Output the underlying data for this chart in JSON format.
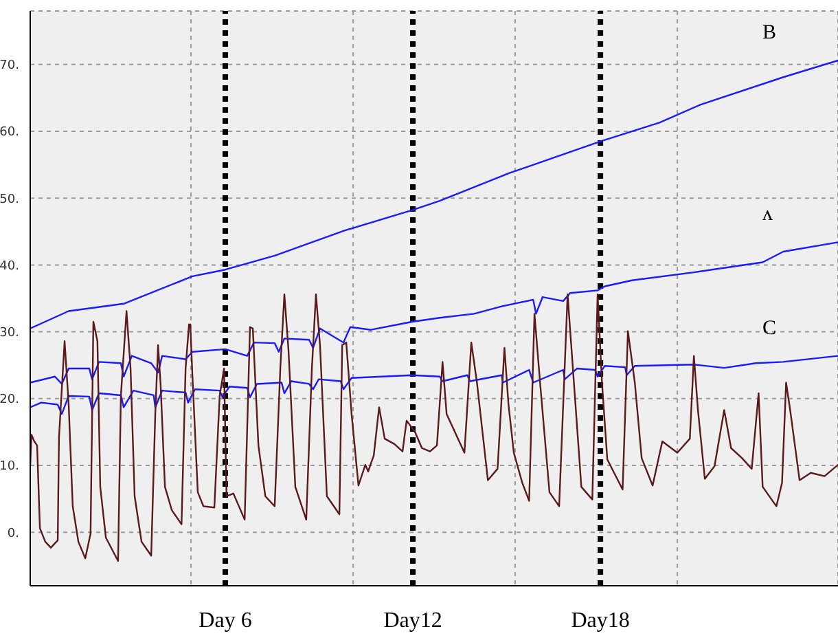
{
  "chart_data": {
    "type": "line",
    "xlim": [
      -0.24,
      25.6
    ],
    "ylim": [
      -8,
      78
    ],
    "xticks": [
      {
        "value": 4.9,
        "label": null
      },
      {
        "value": 10.09,
        "label": null
      },
      {
        "value": 15.27,
        "label": null
      },
      {
        "value": 20.46,
        "label": null
      }
    ],
    "tick_labels": "y",
    "yticks": [
      {
        "value": 0,
        "label": "0."
      },
      {
        "value": 10,
        "label": "10."
      },
      {
        "value": 20,
        "label": "20."
      },
      {
        "value": 30,
        "label": "30."
      },
      {
        "value": 40,
        "label": "40."
      },
      {
        "value": 50,
        "label": "50."
      },
      {
        "value": 60,
        "label": "60."
      },
      {
        "value": 70,
        "label": "70."
      }
    ],
    "grid": true,
    "marker": "none",
    "line_style": "solid",
    "ref_lines": [
      {
        "axis": "x",
        "value": 6,
        "label": "Day 6",
        "color": "#000000",
        "line_style": "dotted"
      },
      {
        "axis": "x",
        "value": 12,
        "label": "Day12",
        "color": "#000000",
        "line_style": "dotted"
      },
      {
        "axis": "x",
        "value": 18,
        "label": "Day18",
        "color": "#000000",
        "line_style": "dotted"
      }
    ],
    "series": [
      {
        "name": "B",
        "color": "#1a1aff",
        "x": [
          -0.24,
          0.99,
          2.75,
          4.95,
          6.0,
          7.58,
          9.78,
          11.98,
          12.86,
          15.06,
          18.0,
          19.89,
          21.21,
          23.85,
          25.6
        ],
        "values": [
          30.5,
          33.1,
          34.2,
          38.3,
          39.3,
          41.4,
          45.1,
          48.2,
          49.6,
          53.7,
          58.5,
          61.3,
          64.0,
          68.1,
          70.6
        ]
      },
      {
        "name": "ʌ",
        "color": "#1a1aff",
        "x": [
          -0.24,
          0.55,
          0.77,
          0.99,
          1.65,
          1.74,
          1.96,
          2.66,
          2.75,
          3.01,
          3.63,
          3.85,
          3.98,
          4.73,
          4.95,
          6.0,
          6.7,
          6.92,
          7.58,
          7.71,
          7.89,
          8.68,
          8.81,
          9.03,
          9.78,
          10.0,
          10.66,
          11.98,
          12.86,
          13.96,
          14.84,
          15.85,
          15.94,
          16.15,
          16.81,
          17.03,
          17.91,
          18.14,
          19.01,
          20.99,
          23.19,
          23.85,
          25.6
        ],
        "values": [
          22.4,
          23.3,
          22.2,
          24.5,
          24.5,
          22.9,
          25.5,
          25.3,
          23.3,
          26.4,
          25.3,
          23.9,
          26.4,
          25.9,
          27.0,
          27.4,
          26.4,
          28.4,
          28.3,
          27.0,
          29.0,
          28.8,
          27.6,
          30.5,
          28.4,
          30.7,
          30.3,
          31.5,
          32.1,
          32.7,
          33.8,
          34.8,
          32.7,
          35.2,
          34.6,
          35.8,
          36.2,
          36.8,
          37.7,
          38.9,
          40.4,
          42.0,
          43.4
        ]
      },
      {
        "name": "C",
        "color": "#1a1aff",
        "x": [
          -0.24,
          0.11,
          0.64,
          0.77,
          0.99,
          1.65,
          1.74,
          1.96,
          2.66,
          2.75,
          3.06,
          3.71,
          3.76,
          3.98,
          4.73,
          4.81,
          5.03,
          5.82,
          5.91,
          6.13,
          6.7,
          6.79,
          7.01,
          7.8,
          7.89,
          8.11,
          8.68,
          8.81,
          8.99,
          9.69,
          9.78,
          10.04,
          11.98,
          12.86,
          12.95,
          13.74,
          13.83,
          14.84,
          14.88,
          15.72,
          15.85,
          16.81,
          16.86,
          17.25,
          17.83,
          17.91,
          18.14,
          18.79,
          18.84,
          19.1,
          20.99,
          21.96,
          22.97,
          23.85,
          25.6
        ],
        "values": [
          18.7,
          19.4,
          19.1,
          17.7,
          20.4,
          20.3,
          18.3,
          20.8,
          20.5,
          18.7,
          21.2,
          20.5,
          18.7,
          21.2,
          20.9,
          19.4,
          21.4,
          21.2,
          20.2,
          21.8,
          21.6,
          20.2,
          22.2,
          22.4,
          20.8,
          22.6,
          22.2,
          21.4,
          22.9,
          22.6,
          21.4,
          23.1,
          23.5,
          23.3,
          22.6,
          23.5,
          22.6,
          23.5,
          22.4,
          24.3,
          22.4,
          24.3,
          22.9,
          24.5,
          24.3,
          23.3,
          24.9,
          24.7,
          23.5,
          24.9,
          25.1,
          24.6,
          25.3,
          25.5,
          26.4
        ]
      },
      {
        "color": "#5a1a1a",
        "x": [
          -0.24,
          -0.2,
          -0.11,
          -0.02,
          0.07,
          0.24,
          0.42,
          0.64,
          0.68,
          0.86,
          0.99,
          1.12,
          1.3,
          1.52,
          1.69,
          1.78,
          1.91,
          2.0,
          2.18,
          2.57,
          2.66,
          2.84,
          2.97,
          3.1,
          3.32,
          3.63,
          3.76,
          3.85,
          3.93,
          4.07,
          4.29,
          4.6,
          4.73,
          4.84,
          4.88,
          4.95,
          5.12,
          5.3,
          5.65,
          5.82,
          5.96,
          6.04,
          6.26,
          6.62,
          6.79,
          6.88,
          7.06,
          7.28,
          7.58,
          7.76,
          7.89,
          8.02,
          8.24,
          8.59,
          8.77,
          8.9,
          9.03,
          9.25,
          9.65,
          9.74,
          9.87,
          10.04,
          10.26,
          10.48,
          10.57,
          10.75,
          10.92,
          11.1,
          11.41,
          11.67,
          11.8,
          12.07,
          12.29,
          12.55,
          12.77,
          12.95,
          13.08,
          13.65,
          13.87,
          14.05,
          14.4,
          14.71,
          14.93,
          15.06,
          15.23,
          15.5,
          15.72,
          15.89,
          16.07,
          16.37,
          16.68,
          16.95,
          17.12,
          17.39,
          17.74,
          17.91,
          18.05,
          18.22,
          18.71,
          18.88,
          19.1,
          19.32,
          19.67,
          19.98,
          20.46,
          20.86,
          20.99,
          21.12,
          21.34,
          21.65,
          21.96,
          22.18,
          22.53,
          22.84,
          23.06,
          23.19,
          23.63,
          23.81,
          23.94,
          24.07,
          24.37,
          24.73,
          25.17,
          25.6
        ],
        "values": [
          9.9,
          14.6,
          13.6,
          13.0,
          0.6,
          -1.4,
          -2.3,
          -1.2,
          14.2,
          28.6,
          19.1,
          3.9,
          -1.4,
          -3.9,
          -0.2,
          31.5,
          28.6,
          6.8,
          -0.8,
          -4.3,
          20.4,
          33.1,
          24.5,
          5.4,
          -1.4,
          -3.5,
          17.7,
          28.0,
          22.2,
          6.8,
          3.3,
          1.2,
          24.5,
          31.1,
          31.1,
          23.3,
          6.0,
          3.9,
          3.7,
          20.4,
          24.5,
          5.4,
          5.8,
          1.9,
          30.7,
          30.5,
          13.0,
          5.4,
          3.9,
          24.5,
          35.6,
          27.4,
          6.8,
          1.9,
          24.5,
          35.6,
          28.0,
          5.4,
          2.7,
          28.0,
          28.4,
          17.7,
          7.0,
          10.1,
          9.1,
          11.5,
          18.7,
          14.0,
          13.2,
          12.1,
          16.7,
          15.0,
          12.6,
          12.1,
          13.0,
          25.5,
          17.7,
          11.9,
          28.4,
          22.4,
          7.8,
          9.5,
          27.6,
          19.1,
          11.9,
          7.4,
          4.7,
          32.7,
          22.4,
          6.0,
          3.9,
          35.6,
          24.5,
          6.8,
          4.9,
          35.6,
          22.4,
          10.9,
          6.4,
          30.1,
          22.4,
          11.1,
          7.0,
          13.6,
          11.9,
          14.0,
          26.4,
          18.3,
          8.0,
          9.9,
          18.3,
          12.6,
          11.1,
          9.5,
          20.8,
          6.8,
          3.9,
          7.4,
          22.4,
          18.3,
          7.8,
          8.9,
          8.4,
          10.1
        ]
      }
    ]
  }
}
